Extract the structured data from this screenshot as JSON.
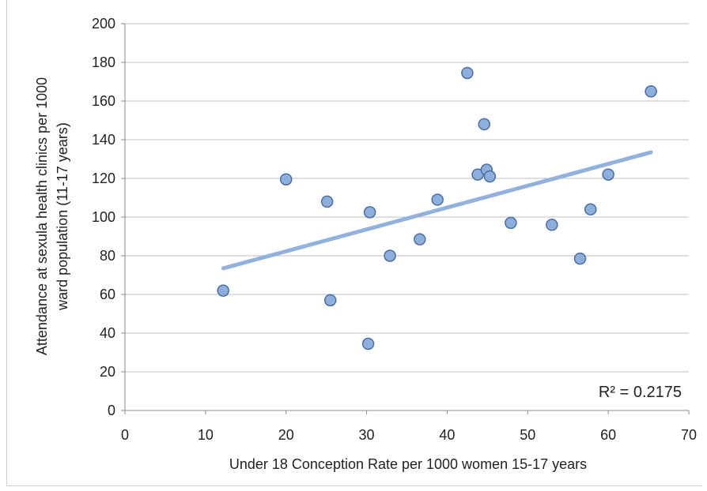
{
  "chart_data": {
    "type": "scatter",
    "xlabel": "Under 18 Conception Rate per 1000 women 15-17 years",
    "ylabel_lines": [
      "Attendance at sexula health clinics per 1000",
      "ward population (11-17 years)"
    ],
    "xlim": [
      0,
      70
    ],
    "ylim": [
      0,
      200
    ],
    "x_ticks": [
      0,
      10,
      20,
      30,
      40,
      50,
      60,
      70
    ],
    "y_ticks": [
      0,
      20,
      40,
      60,
      80,
      100,
      120,
      140,
      160,
      180,
      200
    ],
    "grid": "horizontal",
    "points": [
      {
        "x": 12.2,
        "y": 62
      },
      {
        "x": 20.0,
        "y": 119.5
      },
      {
        "x": 25.1,
        "y": 108
      },
      {
        "x": 25.5,
        "y": 57
      },
      {
        "x": 30.2,
        "y": 34.5
      },
      {
        "x": 30.4,
        "y": 102.5
      },
      {
        "x": 32.9,
        "y": 80
      },
      {
        "x": 36.6,
        "y": 88.5
      },
      {
        "x": 38.8,
        "y": 109
      },
      {
        "x": 42.5,
        "y": 174.5
      },
      {
        "x": 43.8,
        "y": 122
      },
      {
        "x": 44.6,
        "y": 148
      },
      {
        "x": 44.9,
        "y": 124.5
      },
      {
        "x": 45.3,
        "y": 121
      },
      {
        "x": 47.9,
        "y": 97
      },
      {
        "x": 53.0,
        "y": 96
      },
      {
        "x": 56.5,
        "y": 78.5
      },
      {
        "x": 57.8,
        "y": 104
      },
      {
        "x": 60.0,
        "y": 122
      },
      {
        "x": 65.3,
        "y": 165
      }
    ],
    "trendline": {
      "x": [
        12.2,
        65.3
      ],
      "y": [
        73.5,
        133.5
      ],
      "r2_label": "R² = 0.2175"
    },
    "colors": {
      "marker_fill": "#8eaedb",
      "marker_stroke": "#4a6fa5",
      "trend": "#92b1dc",
      "grid": "#bfbfbf",
      "axis": "#8c8c8c"
    }
  }
}
